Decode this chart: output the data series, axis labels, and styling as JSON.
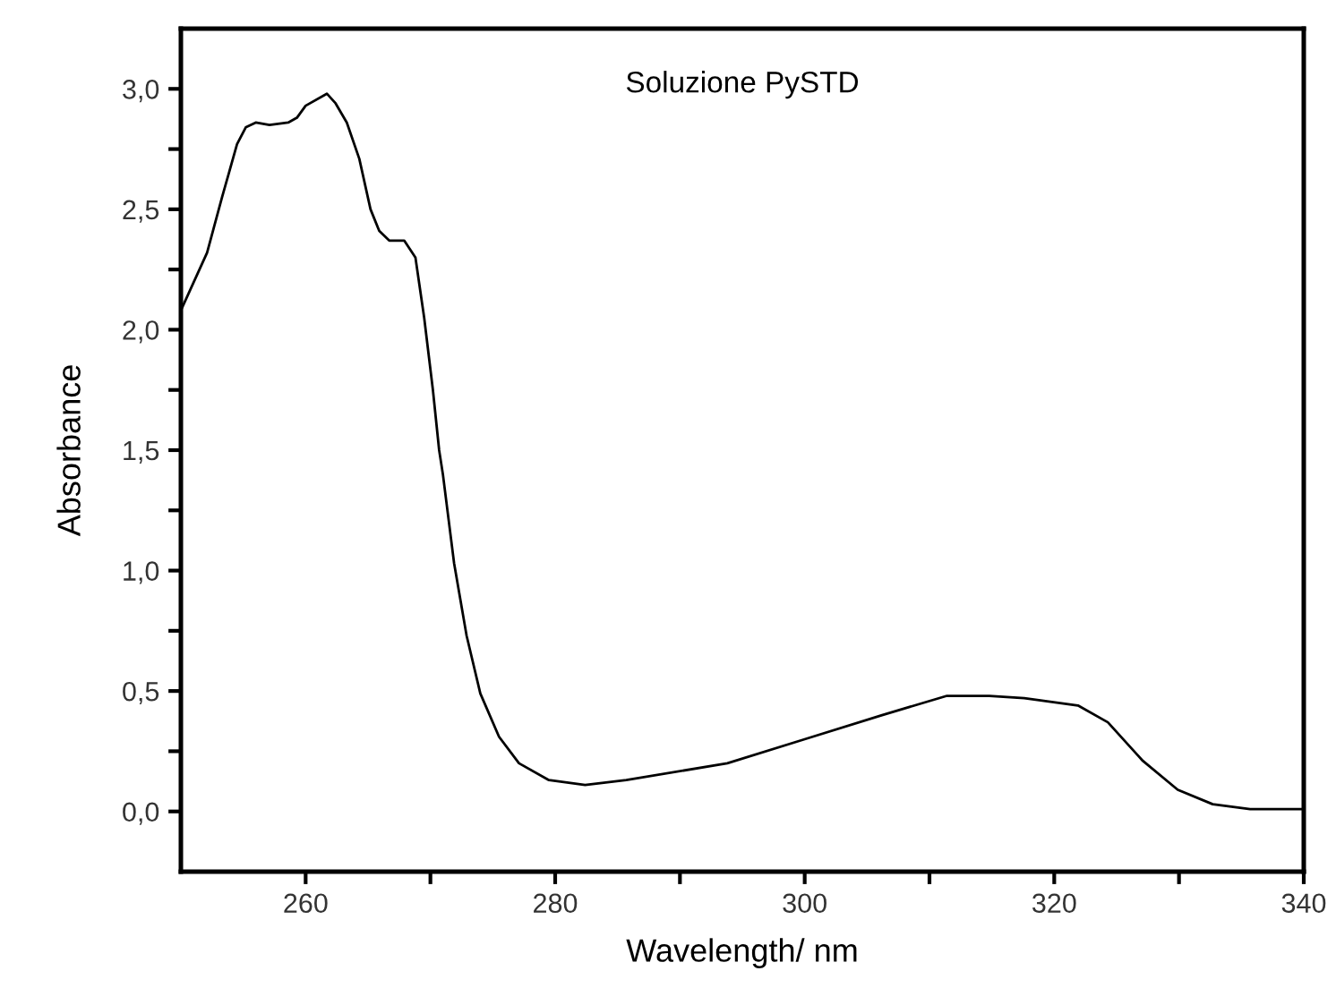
{
  "chart_data": {
    "type": "line",
    "title": "Soluzione PySTD",
    "xlabel": "Wavelength/ nm",
    "ylabel": "Absorbance",
    "x": [
      250.0,
      252.1,
      253.3,
      254.5,
      255.2,
      256.0,
      257.1,
      258.6,
      259.3,
      260.0,
      261.7,
      262.4,
      263.3,
      264.3,
      265.2,
      265.9,
      266.7,
      267.9,
      268.8,
      269.5,
      270.2,
      270.7,
      271.0,
      271.9,
      272.9,
      274.0,
      275.5,
      277.1,
      279.5,
      282.4,
      285.7,
      293.8,
      300.0,
      306.2,
      311.4,
      314.8,
      317.6,
      321.9,
      324.3,
      327.1,
      329.9,
      332.7,
      335.7,
      340.0
    ],
    "series": [
      {
        "color": "#000000",
        "values": [
          2.08,
          2.32,
          2.55,
          2.77,
          2.84,
          2.86,
          2.85,
          2.86,
          2.88,
          2.93,
          2.98,
          2.94,
          2.86,
          2.71,
          2.5,
          2.41,
          2.37,
          2.37,
          2.3,
          2.05,
          1.75,
          1.5,
          1.4,
          1.03,
          0.73,
          0.49,
          0.31,
          0.2,
          0.13,
          0.11,
          0.13,
          0.2,
          0.3,
          0.4,
          0.48,
          0.48,
          0.47,
          0.44,
          0.37,
          0.21,
          0.09,
          0.03,
          0.01,
          0.01
        ]
      }
    ],
    "xlim": [
      250,
      340
    ],
    "ylim": [
      -0.25,
      3.25
    ],
    "xticks": [
      260,
      {
        "value": 270,
        "label": null
      },
      280,
      {
        "value": 290,
        "label": null
      },
      300,
      {
        "value": 310,
        "label": null
      },
      320,
      {
        "value": 330,
        "label": null
      },
      340
    ],
    "yticks": [
      {
        "value": 0,
        "label": "0,0"
      },
      {
        "value": 0.25,
        "label": null
      },
      {
        "value": 0.5,
        "label": "0,5"
      },
      {
        "value": 0.75,
        "label": null
      },
      {
        "value": 1,
        "label": "1,0"
      },
      {
        "value": 1.25,
        "label": null
      },
      {
        "value": 1.5,
        "label": "1,5"
      },
      {
        "value": 1.75,
        "label": null
      },
      {
        "value": 2,
        "label": "2,0"
      },
      {
        "value": 2.25,
        "label": null
      },
      {
        "value": 2.5,
        "label": "2,5"
      },
      {
        "value": 2.75,
        "label": null
      },
      {
        "value": 3,
        "label": "3,0"
      }
    ],
    "grid": false,
    "legend": false,
    "marker": "none",
    "line_style": "solid"
  }
}
